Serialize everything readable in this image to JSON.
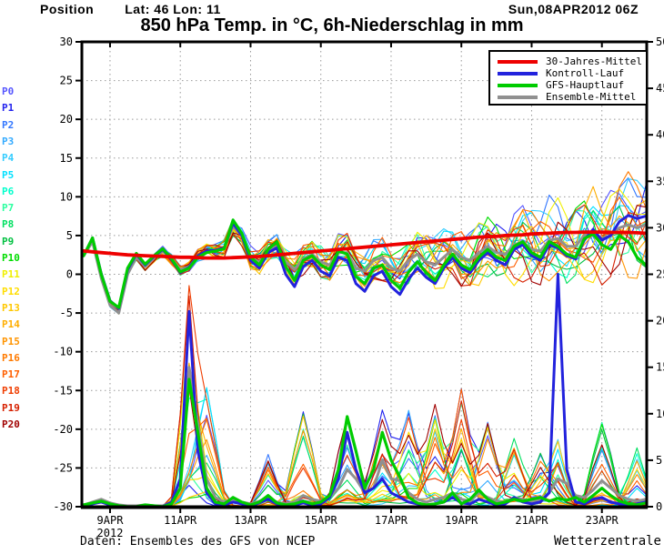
{
  "header": {
    "position_label": "Position",
    "coords": "Lat: 46 Lon: 11",
    "run_datetime": "Sun,08APR2012 06Z"
  },
  "title": "850 hPa Temp. in °C, 6h-Niederschlag in mm",
  "footer": {
    "source": "Daten: Ensembles des GFS von NCEP",
    "brand": "Wetterzentrale"
  },
  "legend": {
    "items": [
      {
        "label": "30-Jahres-Mittel",
        "color": "#ee0000"
      },
      {
        "label": "Kontroll-Lauf",
        "color": "#2222dd"
      },
      {
        "label": "GFS-Hauptlauf",
        "color": "#00cc00"
      },
      {
        "label": "Ensemble-Mittel",
        "color": "#909090"
      }
    ]
  },
  "chart_data": {
    "type": "line",
    "title": "850 hPa Temp. in °C, 6h-Niederschlag in mm",
    "time": {
      "start": "08APR2012 06Z",
      "step_hours": 6,
      "n_steps": 65
    },
    "axes": {
      "left": {
        "min": -30,
        "max": 30,
        "step": 5,
        "unit": "°C"
      },
      "right": {
        "min": 0,
        "max": 50,
        "step": 5,
        "unit": "mm"
      },
      "x_ticks": [
        {
          "t": 3,
          "label": "9APR",
          "sublabel": "2012"
        },
        {
          "t": 11,
          "label": "11APR"
        },
        {
          "t": 19,
          "label": "13APR"
        },
        {
          "t": 27,
          "label": "15APR"
        },
        {
          "t": 35,
          "label": "17APR"
        },
        {
          "t": 43,
          "label": "19APR"
        },
        {
          "t": 51,
          "label": "21APR"
        },
        {
          "t": 59,
          "label": "23APR"
        }
      ]
    },
    "grid": {
      "color": "#999999",
      "dash": "1.5,3.5"
    },
    "series": {
      "mean30y_temp": {
        "name": "30-Jahres-Mittel",
        "color": "#ee0000",
        "width": 3.8,
        "values": [
          3.0,
          2.9,
          2.8,
          2.7,
          2.6,
          2.5,
          2.45,
          2.4,
          2.35,
          2.3,
          2.25,
          2.2,
          2.2,
          2.15,
          2.1,
          2.1,
          2.1,
          2.15,
          2.2,
          2.25,
          2.3,
          2.4,
          2.5,
          2.6,
          2.7,
          2.8,
          2.9,
          3.0,
          3.1,
          3.2,
          3.3,
          3.4,
          3.5,
          3.6,
          3.7,
          3.8,
          3.9,
          4.0,
          4.1,
          4.2,
          4.3,
          4.4,
          4.5,
          4.6,
          4.7,
          4.8,
          4.85,
          4.9,
          5.0,
          5.05,
          5.1,
          5.2,
          5.25,
          5.3,
          5.35,
          5.4,
          5.4,
          5.45,
          5.45,
          5.45,
          5.4,
          5.4,
          5.4,
          5.35,
          5.3
        ]
      },
      "main_temp": {
        "name": "GFS-Hauptlauf",
        "color": "#00cc00",
        "width": 3.2,
        "values": [
          2.4,
          4.7,
          0.0,
          -3.5,
          -4.3,
          0.8,
          2.7,
          1.3,
          2.4,
          3.3,
          2.0,
          0.3,
          0.8,
          2.2,
          2.8,
          3.0,
          3.3,
          7.0,
          5.3,
          2.2,
          1.2,
          3.2,
          4.2,
          1.0,
          -0.8,
          1.8,
          2.4,
          1.2,
          0.6,
          3.0,
          2.6,
          -0.3,
          -1.2,
          0.8,
          1.2,
          -0.8,
          -1.8,
          0.3,
          1.6,
          0.2,
          -0.8,
          1.2,
          2.6,
          1.2,
          0.6,
          2.2,
          3.2,
          2.2,
          1.8,
          3.6,
          4.2,
          2.8,
          2.2,
          4.2,
          3.6,
          2.6,
          2.2,
          4.6,
          5.2,
          3.8,
          3.2,
          5.0,
          4.2,
          2.2,
          1.2
        ]
      },
      "control_temp": {
        "name": "Kontroll-Lauf",
        "color": "#2222dd",
        "width": 3.0,
        "values": [
          2.4,
          4.7,
          0.1,
          -3.4,
          -4.4,
          0.6,
          2.6,
          1.2,
          2.3,
          3.2,
          1.9,
          0.2,
          0.9,
          2.4,
          3.0,
          3.1,
          3.4,
          6.6,
          5.0,
          1.8,
          0.8,
          2.8,
          3.4,
          0.0,
          -1.6,
          1.0,
          1.8,
          0.4,
          -0.2,
          2.2,
          1.8,
          -1.2,
          -2.2,
          -0.2,
          0.4,
          -1.6,
          -2.6,
          -0.6,
          0.8,
          -0.4,
          -1.2,
          0.8,
          2.2,
          0.8,
          0.2,
          1.8,
          2.8,
          1.8,
          1.2,
          3.2,
          3.8,
          2.4,
          1.8,
          3.8,
          3.4,
          2.4,
          2.0,
          4.4,
          5.8,
          4.4,
          5.0,
          6.8,
          7.6,
          7.2,
          7.5
        ]
      },
      "ensmean_temp": {
        "name": "Ensemble-Mittel",
        "color": "#909090",
        "width": 3.0,
        "values": [
          2.4,
          4.2,
          -0.5,
          -4.0,
          -5.0,
          0.0,
          2.2,
          1.0,
          2.1,
          3.0,
          2.0,
          0.6,
          1.0,
          2.3,
          2.9,
          3.0,
          3.4,
          6.2,
          5.0,
          2.2,
          1.6,
          3.0,
          3.6,
          1.6,
          0.6,
          2.0,
          2.6,
          1.6,
          1.2,
          2.8,
          2.8,
          0.8,
          0.4,
          1.8,
          2.2,
          0.8,
          0.4,
          1.8,
          2.6,
          1.6,
          1.2,
          2.2,
          3.2,
          2.2,
          1.8,
          2.8,
          3.6,
          2.8,
          2.6,
          3.8,
          4.2,
          3.2,
          3.0,
          4.4,
          4.6,
          3.6,
          3.6,
          5.0,
          5.4,
          4.6,
          5.0,
          6.0,
          6.4,
          6.0,
          6.4
        ]
      },
      "main_precip": {
        "name": "GFS-Hauptlauf",
        "color": "#00cc00",
        "width": 3.2,
        "values": [
          0.2,
          0.4,
          0.6,
          0.3,
          0.1,
          0,
          0,
          0.2,
          0.1,
          0,
          0.3,
          2,
          13.7,
          8,
          2,
          0.5,
          0.3,
          1,
          0.5,
          0.2,
          0.5,
          1.2,
          0.4,
          0.2,
          0.3,
          0.6,
          0.3,
          0.5,
          1.2,
          4,
          9.7,
          6,
          2,
          4,
          8,
          5,
          3.2,
          1,
          0.4,
          0.2,
          0.3,
          0.5,
          1.5,
          0.3,
          0.8,
          1.8,
          0.8,
          0.3,
          0.5,
          0.8,
          0.6,
          0.8,
          1.0,
          0.6,
          0.9,
          0.7,
          1.0,
          0.5,
          1.2,
          2.0,
          1.2,
          0.6,
          0.3,
          0.2,
          0.4
        ]
      },
      "control_precip": {
        "name": "Kontroll-Lauf",
        "color": "#2222dd",
        "width": 3.0,
        "values": [
          0.1,
          0.3,
          0.5,
          0.2,
          0,
          0,
          0,
          0.1,
          0,
          0,
          0.5,
          3,
          21,
          6,
          1.5,
          0.3,
          0.2,
          0.5,
          0.3,
          0.1,
          0.4,
          0.8,
          0.3,
          0.1,
          0.2,
          0.4,
          0.2,
          0.3,
          1,
          3,
          8,
          4,
          1.5,
          2,
          3,
          1.5,
          1,
          0.5,
          0.3,
          0.2,
          0.3,
          0.5,
          1,
          0.4,
          0.3,
          0.8,
          0.5,
          0.2,
          0.3,
          1,
          0.5,
          0.3,
          0.5,
          1.5,
          25,
          4,
          0.5,
          0.3,
          0.8,
          1,
          0.5,
          0.3,
          0.2,
          0.3,
          0.5
        ]
      },
      "ensmean_precip": {
        "name": "Ensemble-Mittel",
        "color": "#909090",
        "width": 3.0,
        "values": [
          0.2,
          0.5,
          0.8,
          0.4,
          0.2,
          0.1,
          0.1,
          0.2,
          0.1,
          0.1,
          0.5,
          3,
          15,
          9,
          3,
          1,
          0.5,
          0.8,
          0.5,
          0.3,
          0.6,
          1,
          0.5,
          0.3,
          0.5,
          1.2,
          0.8,
          0.6,
          1,
          2,
          4,
          3,
          1.5,
          2,
          5,
          3,
          2.8,
          1.5,
          0.8,
          0.5,
          0.8,
          1,
          1.5,
          0.8,
          0.6,
          1.5,
          1,
          0.6,
          0.5,
          1,
          0.8,
          0.6,
          0.8,
          1.5,
          3,
          2.5,
          1.2,
          1,
          1.8,
          2.8,
          2,
          1.2,
          0.8,
          0.6,
          0.8
        ]
      }
    },
    "members": [
      {
        "name": "P0",
        "color": "#5555ff"
      },
      {
        "name": "P1",
        "color": "#2222ee"
      },
      {
        "name": "P2",
        "color": "#3377ff"
      },
      {
        "name": "P3",
        "color": "#33aaff"
      },
      {
        "name": "P4",
        "color": "#33ccff"
      },
      {
        "name": "P5",
        "color": "#00e0ff"
      },
      {
        "name": "P6",
        "color": "#00ffcc"
      },
      {
        "name": "P7",
        "color": "#2bffa0"
      },
      {
        "name": "P8",
        "color": "#00e060"
      },
      {
        "name": "P9",
        "color": "#00c040"
      },
      {
        "name": "P10",
        "color": "#00dd00"
      },
      {
        "name": "P11",
        "color": "#f0f000"
      },
      {
        "name": "P12",
        "color": "#ffdd00"
      },
      {
        "name": "P13",
        "color": "#ffc800"
      },
      {
        "name": "P14",
        "color": "#ffae00"
      },
      {
        "name": "P15",
        "color": "#ff9400"
      },
      {
        "name": "P16",
        "color": "#ff7a00"
      },
      {
        "name": "P17",
        "color": "#ff5f00"
      },
      {
        "name": "P18",
        "color": "#ef3d00"
      },
      {
        "name": "P19",
        "color": "#d62000"
      },
      {
        "name": "P20",
        "color": "#a00000"
      }
    ],
    "member_spread_env": {
      "base": 0.15,
      "scale": 6.0,
      "power": 1.15
    },
    "precip_events": [
      {
        "t": 12,
        "w": 1.1,
        "amp": 14
      },
      {
        "t": 14,
        "w": 1.4,
        "amp": 7
      },
      {
        "t": 21,
        "w": 1.2,
        "amp": 3
      },
      {
        "t": 25,
        "w": 1.4,
        "amp": 6
      },
      {
        "t": 30,
        "w": 1.4,
        "amp": 8
      },
      {
        "t": 34,
        "w": 1.4,
        "amp": 7
      },
      {
        "t": 37,
        "w": 1.4,
        "amp": 6
      },
      {
        "t": 40,
        "w": 1.3,
        "amp": 6
      },
      {
        "t": 43,
        "w": 1.3,
        "amp": 7
      },
      {
        "t": 46,
        "w": 1.3,
        "amp": 5
      },
      {
        "t": 49,
        "w": 1.3,
        "amp": 4
      },
      {
        "t": 52,
        "w": 1.3,
        "amp": 3
      },
      {
        "t": 54,
        "w": 1.1,
        "amp": 4
      },
      {
        "t": 59,
        "w": 1.4,
        "amp": 6
      },
      {
        "t": 63,
        "w": 1.2,
        "amp": 4
      }
    ]
  }
}
